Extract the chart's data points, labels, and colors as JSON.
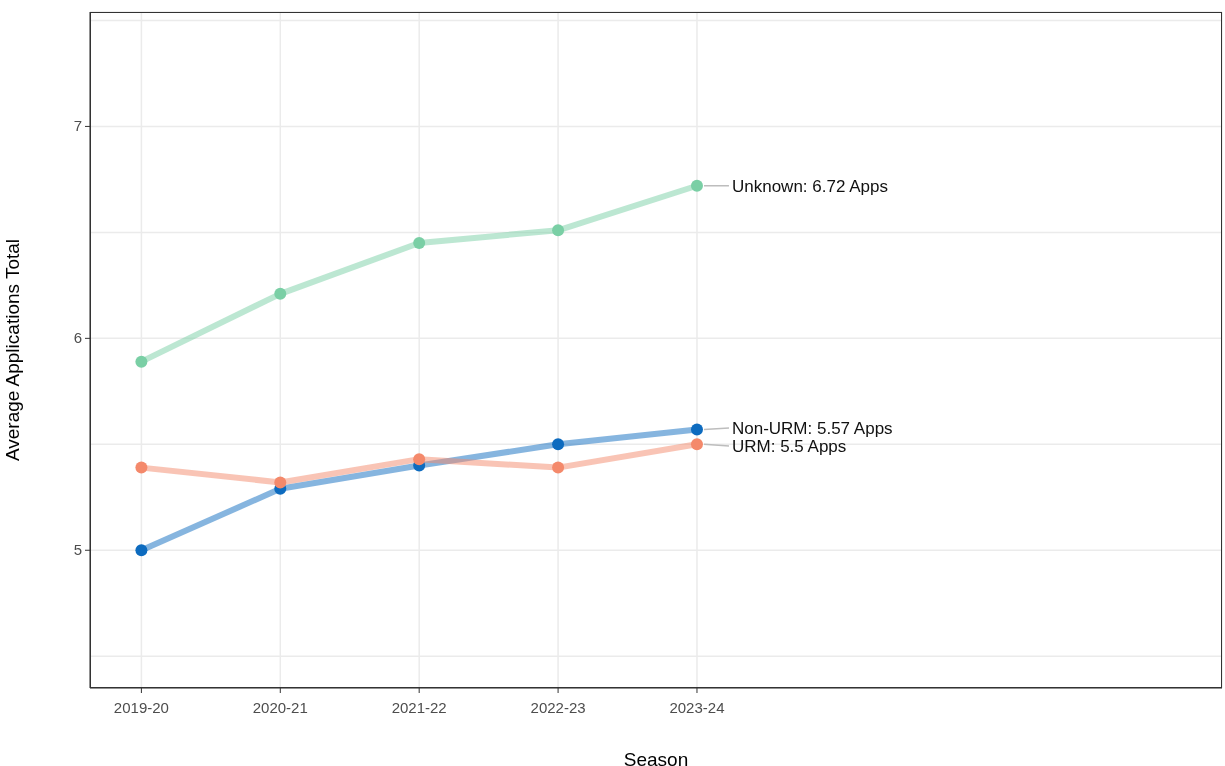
{
  "chart_data": {
    "type": "line",
    "xlabel": "Season",
    "ylabel": "Average Applications Total",
    "categories": [
      "2019-20",
      "2020-21",
      "2021-22",
      "2022-23",
      "2023-24"
    ],
    "series": [
      {
        "color": "#7acfa5",
        "values": [
          5.89,
          6.21,
          6.45,
          6.51,
          6.72
        ]
      },
      {
        "color": "#0d6bbf",
        "values": [
          5.0,
          5.29,
          5.4,
          5.5,
          5.57
        ]
      },
      {
        "color": "#f4896b",
        "values": [
          5.39,
          5.32,
          5.43,
          5.39,
          5.5
        ]
      }
    ],
    "annotations": [
      {
        "text": "Unknown: 6.72 Apps",
        "x": "2023-24",
        "y": 6.72
      },
      {
        "text": "Non-URM: 5.57 Apps",
        "x": "2023-24",
        "y": 5.57
      },
      {
        "text": "URM: 5.5 Apps",
        "x": "2023-24",
        "y": 5.5
      }
    ],
    "ylim": [
      4.35,
      7.54
    ],
    "yticks": [
      {
        "value": 4.5,
        "label": null
      },
      5,
      {
        "value": 5.5,
        "label": null
      },
      6,
      {
        "value": 6.5,
        "label": null
      },
      7,
      {
        "value": 7.5,
        "label": null
      }
    ],
    "grid": true,
    "marker": "circle",
    "line_style": "solid"
  }
}
